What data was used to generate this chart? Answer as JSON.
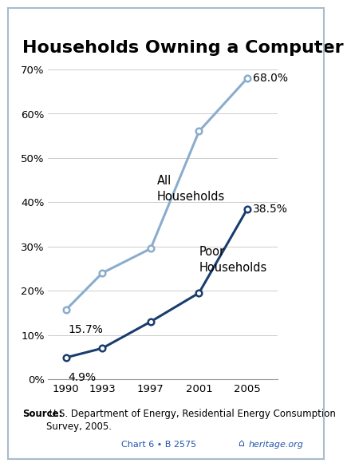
{
  "title": "Households Owning a Computer",
  "x_years": [
    1990,
    1993,
    1997,
    2001,
    2005
  ],
  "all_households": [
    15.7,
    24.0,
    29.5,
    56.0,
    68.0
  ],
  "poor_households": [
    4.9,
    7.0,
    13.0,
    19.5,
    38.5
  ],
  "all_color": "#8aadcd",
  "poor_color": "#1b3d6e",
  "all_label": "All\nHouseholds",
  "poor_label": "Poor\nHouseholds",
  "all_start_label": "15.7%",
  "all_end_label": "68.0%",
  "poor_start_label": "4.9%",
  "poor_end_label": "38.5%",
  "ylim": [
    0,
    70
  ],
  "yticks": [
    0,
    10,
    20,
    30,
    40,
    50,
    60,
    70
  ],
  "source_bold": "Source:",
  "source_rest": " U.S. Department of Energy, Residential Energy Consumption\nSurvey, 2005.",
  "chart_ref": "Chart 6 • B 2575",
  "heritage_text": "heritage.org",
  "background_color": "#ffffff",
  "grid_color": "#cccccc",
  "border_color": "#5577aa",
  "title_fontsize": 16,
  "tick_fontsize": 9.5,
  "annotation_fontsize": 10,
  "source_fontsize": 8.5,
  "chart_ref_color": "#2255aa",
  "heritage_color": "#2255aa"
}
